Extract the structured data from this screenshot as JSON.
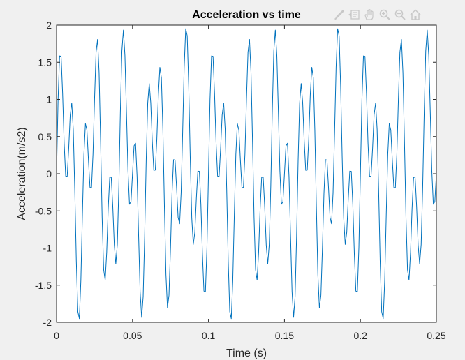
{
  "toolbar": {
    "icons": [
      "brush-icon",
      "data-tips-icon",
      "pan-hand-icon",
      "zoom-in-icon",
      "zoom-out-icon",
      "home-icon"
    ]
  },
  "colors": {
    "line": "#0072bd",
    "axes": "#262626",
    "background": "#f0f0f0",
    "plot_background": "#ffffff"
  },
  "chart_data": {
    "type": "line",
    "title": "Acceleration vs time",
    "xlabel": "Time (s)",
    "ylabel": "Acceleration(m/s2)",
    "xlim": [
      0,
      0.25
    ],
    "ylim": [
      -2,
      2
    ],
    "xticks": [
      "0",
      "0.05",
      "0.1",
      "0.15",
      "0.2",
      "0.25"
    ],
    "yticks": [
      "-2",
      "-1.5",
      "-1",
      "-0.5",
      "0",
      "0.5",
      "1",
      "1.5",
      "2"
    ],
    "grid": false,
    "signal": {
      "sample_interval_s": 0.001,
      "components": [
        {
          "amplitude": 1.0,
          "frequency_hz": 50
        },
        {
          "amplitude": 1.0,
          "frequency_hz": 120
        }
      ]
    },
    "series": [
      {
        "color": "#0072bd"
      }
    ]
  }
}
